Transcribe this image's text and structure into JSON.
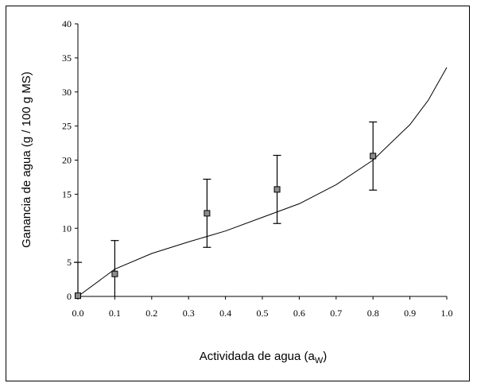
{
  "chart_data": {
    "type": "scatter",
    "title": "",
    "xlabel": "Actividada de agua (a",
    "xlabel_sub": "W",
    "xlabel_close": ")",
    "ylabel": "Ganancia de agua (g /  100  g MS)",
    "xlim": [
      0.0,
      1.0
    ],
    "ylim": [
      0,
      40
    ],
    "x_ticks": [
      "0.0",
      "0.1",
      "0.2",
      "0.3",
      "0.4",
      "0.5",
      "0.6",
      "0.7",
      "0.8",
      "0.9",
      "1.0"
    ],
    "y_ticks": [
      "0",
      "5",
      "10",
      "15",
      "20",
      "25",
      "30",
      "35",
      "40"
    ],
    "grid": false,
    "series": [
      {
        "kind": "points-with-error",
        "marker_color": "#8c8c8c",
        "points": [
          {
            "x": 0.0,
            "y": 0.1,
            "err": 4.9
          },
          {
            "x": 0.1,
            "y": 3.3,
            "err": 4.9
          },
          {
            "x": 0.35,
            "y": 12.2,
            "err": 5.0
          },
          {
            "x": 0.54,
            "y": 15.7,
            "err": 5.0
          },
          {
            "x": 0.8,
            "y": 20.6,
            "err": 5.0
          }
        ]
      },
      {
        "kind": "line",
        "line_color": "#000000",
        "x": [
          0.0,
          0.1,
          0.2,
          0.3,
          0.4,
          0.5,
          0.6,
          0.7,
          0.8,
          0.9,
          0.95,
          1.0
        ],
        "y": [
          0.0,
          4.0,
          6.3,
          8.0,
          9.6,
          11.6,
          13.6,
          16.4,
          20.0,
          25.2,
          28.8,
          33.6
        ]
      }
    ]
  }
}
